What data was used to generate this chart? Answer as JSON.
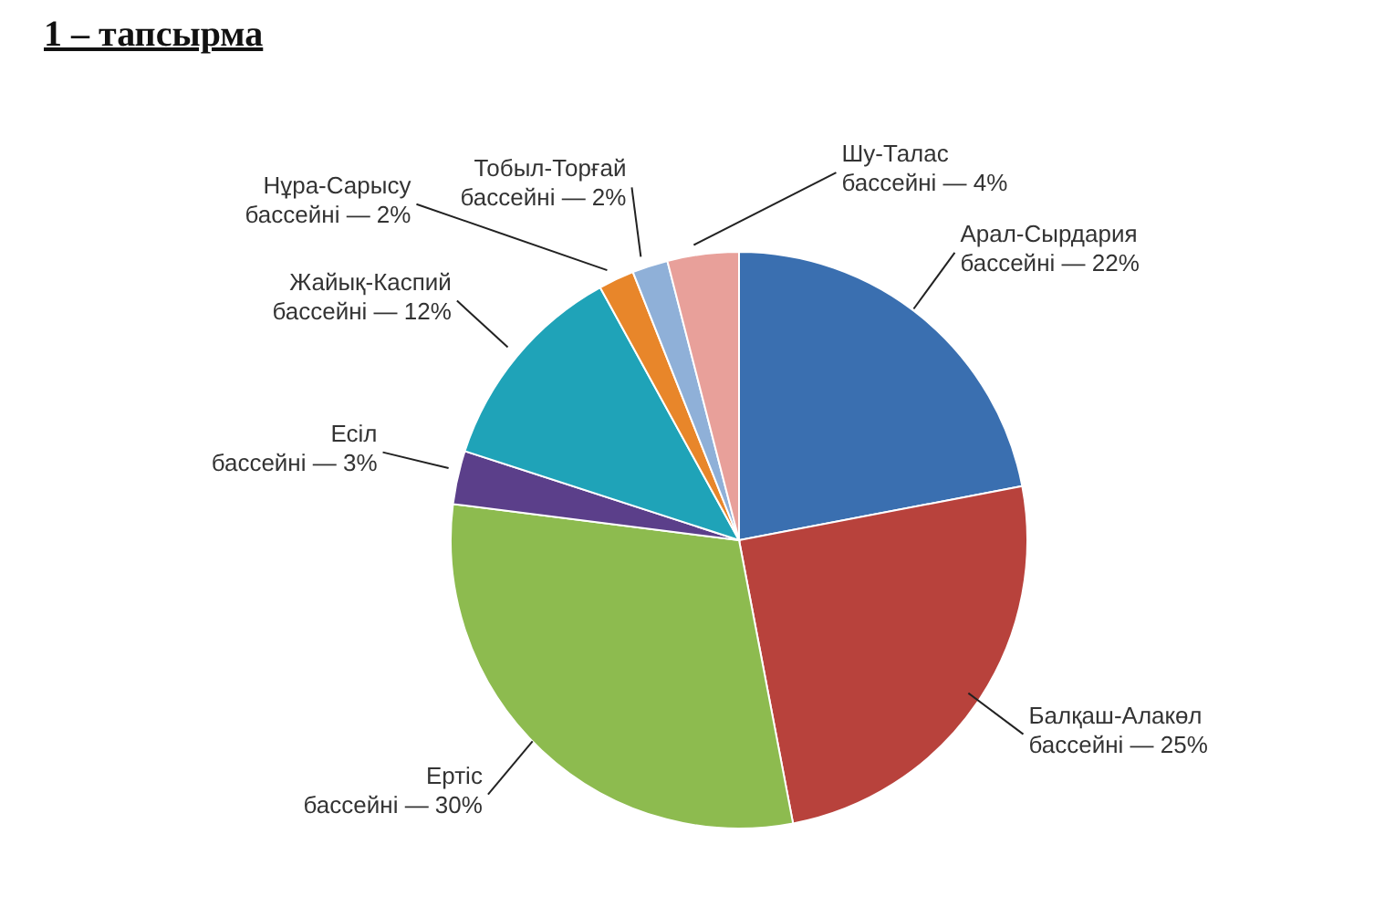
{
  "chart_data": {
    "type": "pie",
    "title": "1 – тапсырма",
    "categories": [
      "Арал-Сырдария бассейні",
      "Балқаш-Алакөл бассейні",
      "Ертіс бассейні",
      "Есіл бассейні",
      "Жайық-Каспий бассейні",
      "Нұра-Сарысу бассейні",
      "Тобыл-Торғай бассейні",
      "Шу-Талас бассейні"
    ],
    "values": [
      22,
      25,
      30,
      3,
      12,
      2,
      2,
      4
    ],
    "value_labels": [
      "— 22%",
      "— 25%",
      "— 30%",
      "— 3%",
      "— 12%",
      "— 2%",
      "— 2%",
      "— 4%"
    ],
    "colors": [
      "#3a6fb0",
      "#b8423c",
      "#8dbb4f",
      "#5b3f8a",
      "#1fa3b8",
      "#e8862a",
      "#8fb0d8",
      "#e8a09a"
    ]
  }
}
